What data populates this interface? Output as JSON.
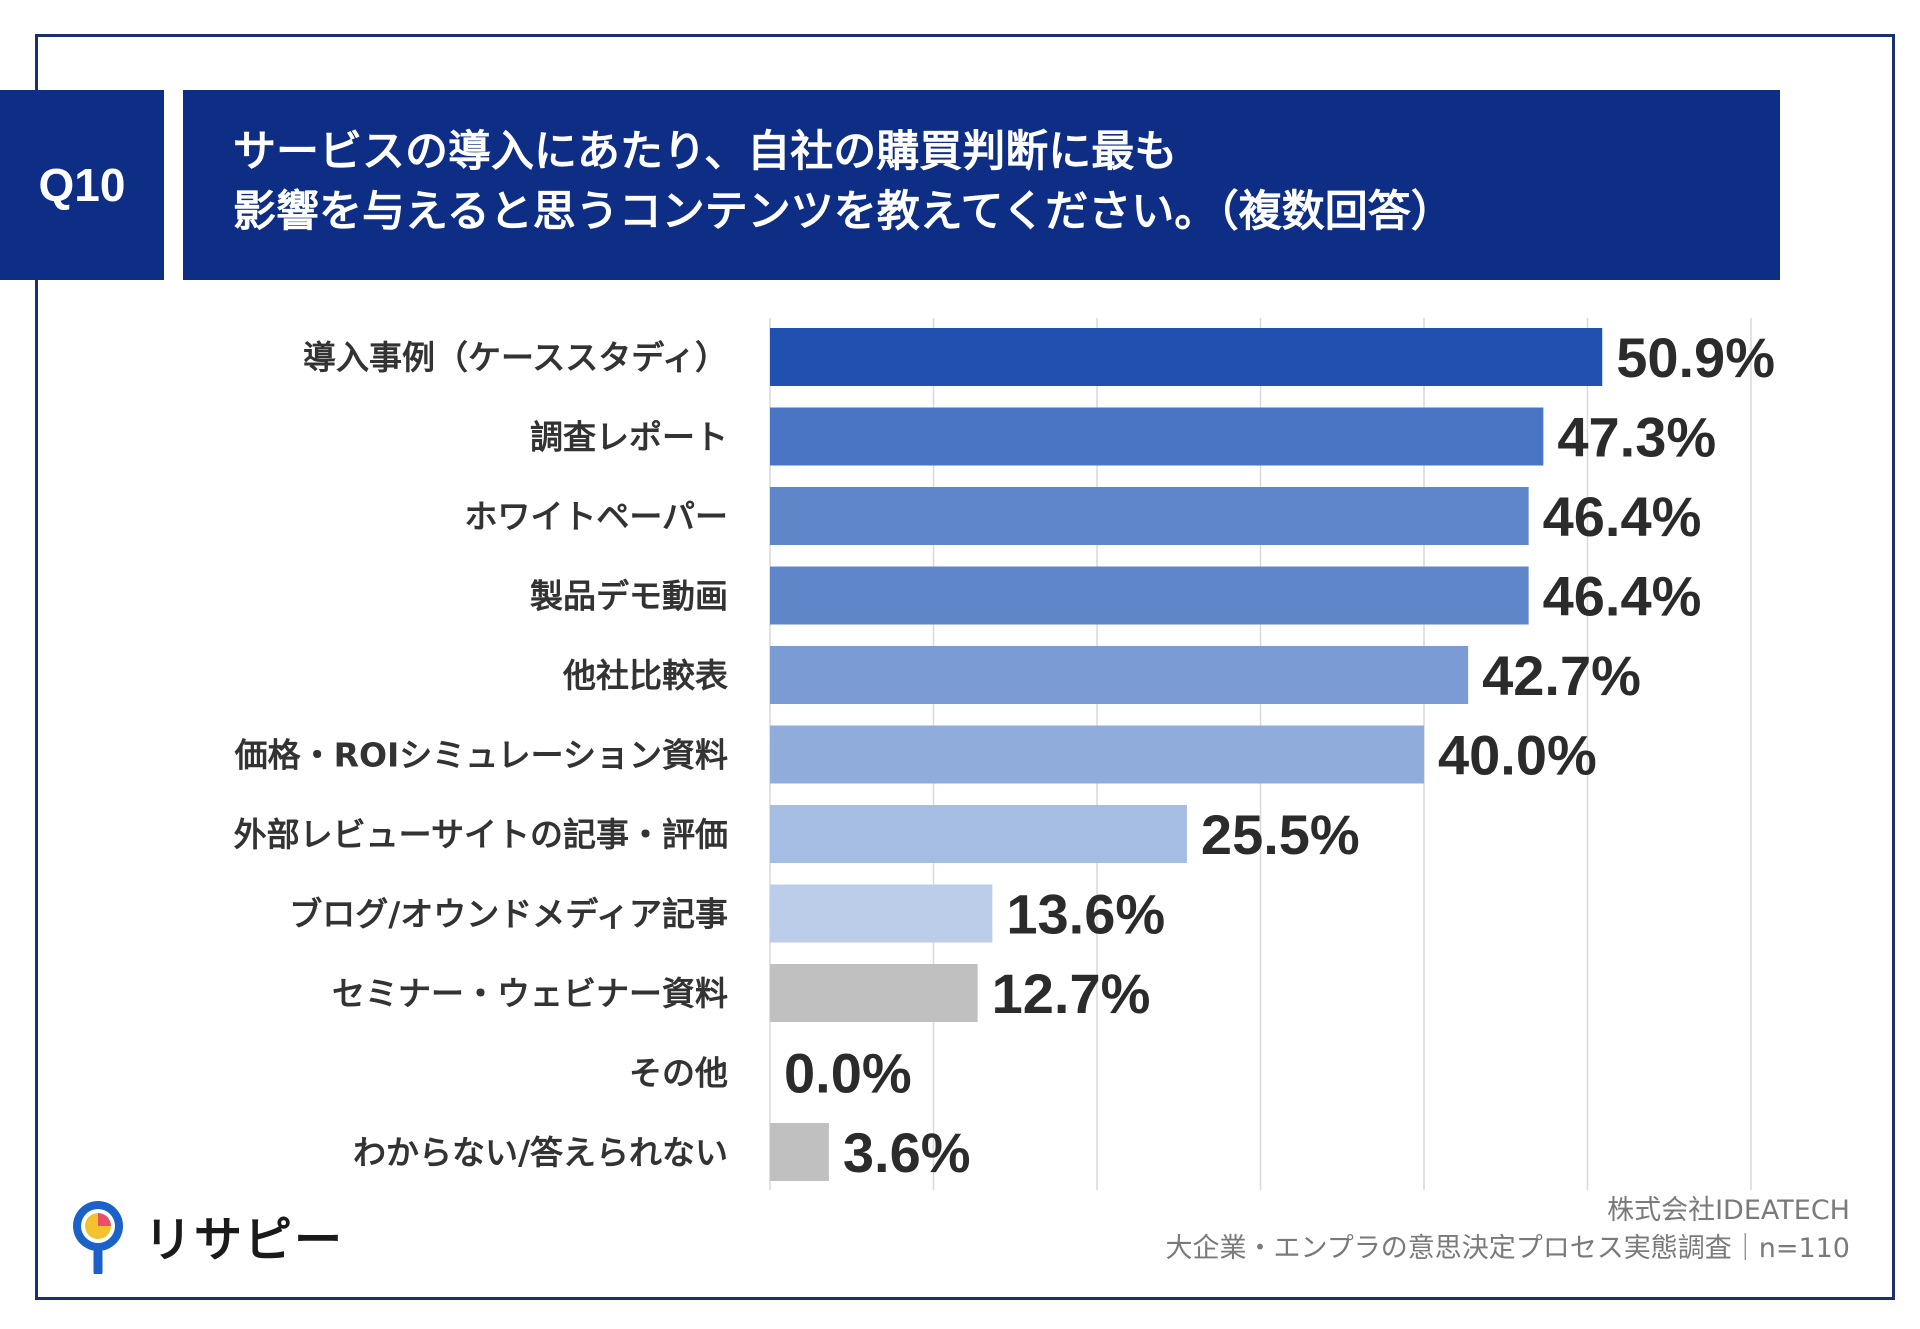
{
  "header": {
    "badge": "Q10",
    "question_line1": "サービスの導入にあたり、自社の購買判断に最も",
    "question_line2": "影響を与えると思うコンテンツを教えてください。（複数回答）"
  },
  "chart_data": {
    "type": "bar",
    "orientation": "horizontal",
    "title": "サービスの導入にあたり、自社の購買判断に最も影響を与えると思うコンテンツを教えてください。（複数回答）",
    "categories": [
      "導入事例（ケーススタディ）",
      "調査レポート",
      "ホワイトペーパー",
      "製品デモ動画",
      "他社比較表",
      "価格・ROIシミュレーション資料",
      "外部レビューサイトの記事・評価",
      "ブログ/オウンドメディア記事",
      "セミナー・ウェビナー資料",
      "その他",
      "わからない/答えられない"
    ],
    "values": [
      50.9,
      47.3,
      46.4,
      46.4,
      42.7,
      40.0,
      25.5,
      13.6,
      12.7,
      0.0,
      3.6
    ],
    "value_labels": [
      "50.9%",
      "47.3%",
      "46.4%",
      "46.4%",
      "42.7%",
      "40.0%",
      "25.5%",
      "13.6%",
      "12.7%",
      "0.0%",
      "3.6%"
    ],
    "colors": [
      "#2050b0",
      "#4a74c4",
      "#5f86c9",
      "#5f86c9",
      "#7a9bd3",
      "#90acdb",
      "#a6bde3",
      "#bccdea",
      "#c0c0c0",
      "#c0c0c0",
      "#c0c0c0"
    ],
    "xlim": [
      0,
      60
    ],
    "grid": true,
    "xlabel": "",
    "ylabel": ""
  },
  "source": {
    "company": "株式会社IDEATECH",
    "survey": "大企業・エンプラの意思決定プロセス実態調査｜n=110"
  },
  "logo": {
    "name": "リサピー",
    "icon": "pin-pie-icon",
    "colors": [
      "#1a62c8",
      "#f2c230",
      "#e8506a"
    ]
  }
}
